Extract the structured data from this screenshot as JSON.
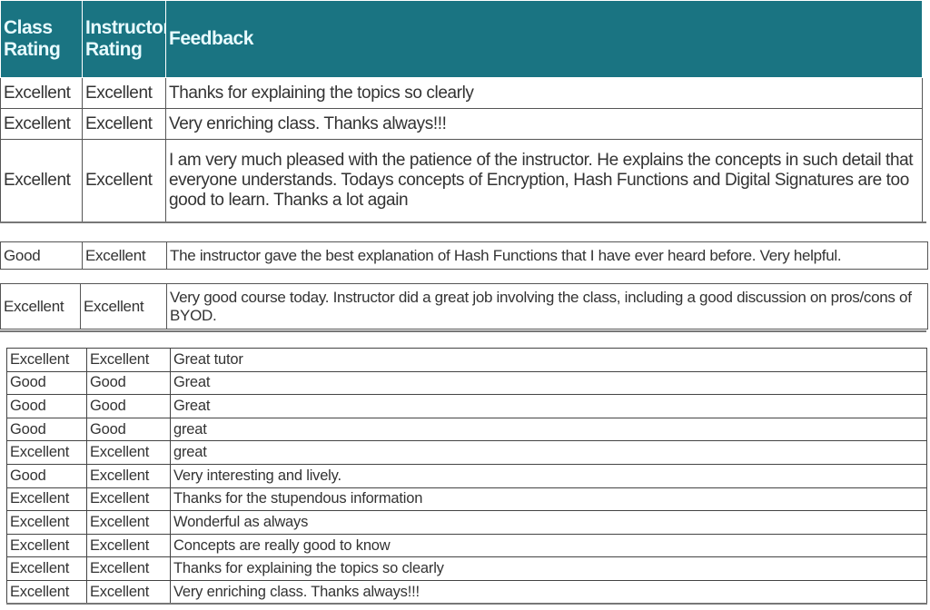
{
  "header": {
    "class_rating": "Class Rating",
    "instructor_rating": "Instructor Rating",
    "feedback": "Feedback"
  },
  "header_color": "#1a7482",
  "sections": [
    {
      "rows": [
        {
          "class_rating": "Excellent",
          "instructor_rating": "Excellent",
          "feedback": "Thanks for explaining the topics so clearly"
        },
        {
          "class_rating": "Excellent",
          "instructor_rating": "Excellent",
          "feedback": "Very enriching class. Thanks always!!!"
        },
        {
          "class_rating": "Excellent",
          "instructor_rating": "Excellent",
          "feedback": "I am very much pleased with the patience of the instructor. He explains the concepts in such detail that everyone understands. Todays concepts of Encryption, Hash Functions and Digital Signatures are too good to learn. Thanks a lot again"
        }
      ]
    },
    {
      "rows": [
        {
          "class_rating": "Good",
          "instructor_rating": "Excellent",
          "feedback": "The instructor gave the best explanation of Hash Functions that I have ever heard before. Very helpful."
        }
      ]
    },
    {
      "rows": [
        {
          "class_rating": "Excellent",
          "instructor_rating": "Excellent",
          "feedback": "Very good course today. Instructor did a great job involving the class, including a good discussion on pros/cons of BYOD."
        }
      ]
    },
    {
      "rows": [
        {
          "class_rating": "Excellent",
          "instructor_rating": "Excellent",
          "feedback": "Great tutor"
        },
        {
          "class_rating": "Good",
          "instructor_rating": "Good",
          "feedback": "Great"
        },
        {
          "class_rating": "Good",
          "instructor_rating": "Good",
          "feedback": "Great"
        },
        {
          "class_rating": "Good",
          "instructor_rating": "Good",
          "feedback": "great"
        },
        {
          "class_rating": "Excellent",
          "instructor_rating": "Excellent",
          "feedback": "great"
        },
        {
          "class_rating": "Good",
          "instructor_rating": "Excellent",
          "feedback": "Very interesting and lively."
        },
        {
          "class_rating": "Excellent",
          "instructor_rating": "Excellent",
          "feedback": "Thanks for the stupendous information"
        },
        {
          "class_rating": "Excellent",
          "instructor_rating": "Excellent",
          "feedback": "Wonderful as always"
        },
        {
          "class_rating": "Excellent",
          "instructor_rating": "Excellent",
          "feedback": "Concepts are really good to know"
        },
        {
          "class_rating": "Excellent",
          "instructor_rating": "Excellent",
          "feedback": "Thanks for explaining the topics so clearly"
        },
        {
          "class_rating": "Excellent",
          "instructor_rating": "Excellent",
          "feedback": "Very enriching class. Thanks always!!!"
        }
      ]
    }
  ]
}
